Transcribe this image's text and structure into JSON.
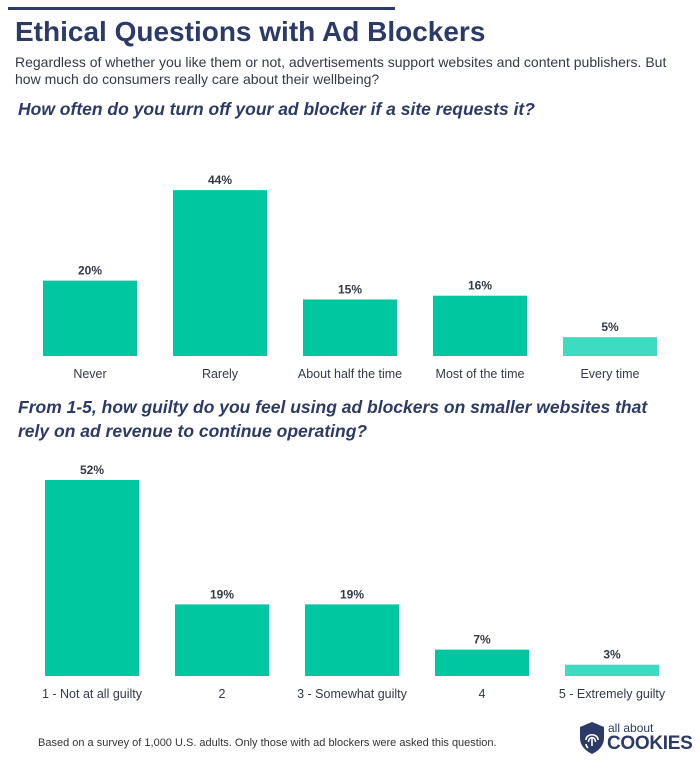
{
  "header": {
    "title": "Ethical Questions with Ad Blockers",
    "subtitle": "Regardless of whether you like them or not, advertisements support websites and content publishers. But how much do consumers really care about their wellbeing?"
  },
  "colors": {
    "bar": "#00c7a0",
    "bar_light": "#3ddcc0",
    "text_dark": "#2b3a67"
  },
  "chart_data": [
    {
      "type": "bar",
      "title": "How often do you turn off your ad blocker if a site requests it?",
      "categories": [
        "Never",
        "Rarely",
        "About half the time",
        "Most of the time",
        "Every time"
      ],
      "values": [
        20,
        44,
        15,
        16,
        5
      ],
      "value_labels": [
        "20%",
        "44%",
        "15%",
        "16%",
        "5%"
      ],
      "xlabel": "",
      "ylabel": "",
      "ylim": [
        0,
        52
      ]
    },
    {
      "type": "bar",
      "title": "From 1-5, how guilty do you feel using ad blockers on smaller websites that rely on ad revenue to continue operating?",
      "categories": [
        "1 - Not at all guilty",
        "2",
        "3 - Somewhat guilty",
        "4",
        "5 - Extremely guilty"
      ],
      "values": [
        52,
        19,
        19,
        7,
        3
      ],
      "value_labels": [
        "52%",
        "19%",
        "19%",
        "7%",
        "3%"
      ],
      "xlabel": "",
      "ylabel": "",
      "ylim": [
        0,
        52
      ]
    }
  ],
  "footer": {
    "note": "Based on a survey of 1,000 U.S. adults. Only those with ad blockers were asked this question.",
    "logo_small": "all about",
    "logo_big": "COOKIES"
  }
}
